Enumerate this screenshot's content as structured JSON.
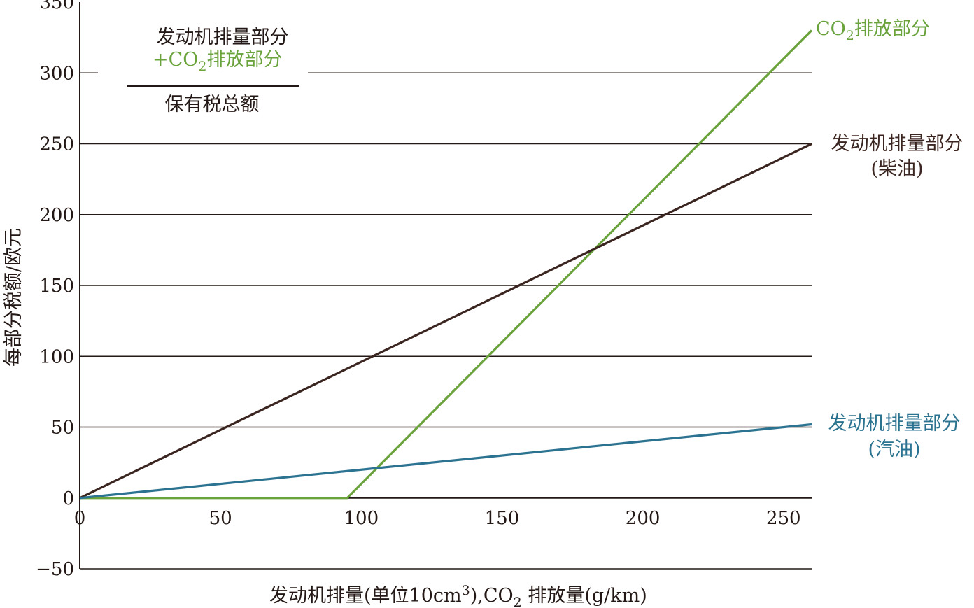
{
  "chart_data": {
    "type": "line",
    "xlabel": {
      "pre": "发动机排量(单位10cm",
      "sup": "3",
      "mid": "),CO",
      "sub": "2",
      "post": " 排放量(g/km)"
    },
    "ylabel": "每部分税额/欧元",
    "xlim": [
      0,
      260
    ],
    "ylim": [
      -50,
      350
    ],
    "xticks": [
      "0",
      "50",
      "100",
      "150",
      "200",
      "250"
    ],
    "xtick_values": [
      0,
      50,
      100,
      150,
      200,
      250
    ],
    "yticks": [
      "−50",
      "0",
      "50",
      "100",
      "150",
      "200",
      "250",
      "300",
      "350"
    ],
    "ytick_values": [
      -50,
      0,
      50,
      100,
      150,
      200,
      250,
      300,
      350
    ],
    "grid": true,
    "series": [
      {
        "key": "co2",
        "color": "#6aa33c",
        "points": [
          [
            0,
            0
          ],
          [
            95,
            0
          ],
          [
            260,
            330
          ]
        ]
      },
      {
        "key": "diesel",
        "color": "#3b2520",
        "points": [
          [
            0,
            0
          ],
          [
            260,
            250
          ]
        ]
      },
      {
        "key": "petrol",
        "color": "#2b7390",
        "points": [
          [
            0,
            0
          ],
          [
            260,
            52
          ]
        ]
      }
    ],
    "annotations": {
      "co2_label": {
        "main": "CO",
        "sub": "2",
        "rest": "排放部分"
      },
      "diesel_label": [
        "发动机排量部分",
        "(柴油)"
      ],
      "petrol_label": [
        "发动机排量部分",
        "(汽油)"
      ],
      "legend": {
        "line1": "发动机排量部分",
        "line2_plus": "+CO",
        "line2_sub": "2",
        "line2_rest": "排放部分",
        "line3": "保有税总额",
        "color_black": "#231815",
        "color_green": "#6aa33c"
      }
    }
  }
}
